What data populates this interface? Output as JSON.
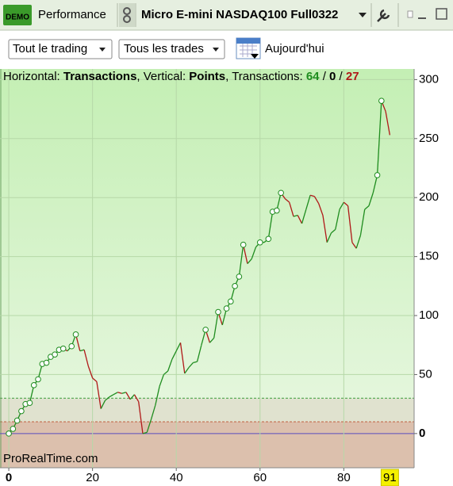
{
  "ui": {
    "demo_badge": "DEMO",
    "tab": "Performance",
    "instrument": "Micro E-mini NASDAQ100 Full0322",
    "filter_trading": "Tout le trading",
    "filter_trades": "Tous les trades",
    "date": "Aujourd'hui"
  },
  "chart_data": {
    "type": "line",
    "header": {
      "h_label": "Horizontal: ",
      "x_label": "Transactions",
      "v_label": ", Vertical: ",
      "y_label": "Points",
      "count_label": ", Transactions: ",
      "wins": 64,
      "sep": " / ",
      "neutral": 0,
      "losses": 27
    },
    "watermark": "ProRealTime.com",
    "x": [
      0,
      1,
      2,
      3,
      4,
      5,
      6,
      7,
      8,
      9,
      10,
      11,
      12,
      13,
      14,
      15,
      16,
      17,
      18,
      19,
      20,
      21,
      22,
      23,
      24,
      25,
      26,
      27,
      28,
      29,
      30,
      31,
      32,
      33,
      34,
      35,
      36,
      37,
      38,
      39,
      40,
      41,
      42,
      43,
      44,
      45,
      46,
      47,
      48,
      49,
      50,
      51,
      52,
      53,
      54,
      55,
      56,
      57,
      58,
      59,
      60,
      61,
      62,
      63,
      64,
      65,
      66,
      67,
      68,
      69,
      70,
      71,
      72,
      73,
      74,
      75,
      76,
      77,
      78,
      79,
      80,
      81,
      82,
      83,
      84,
      85,
      86,
      87,
      88,
      89,
      90,
      91
    ],
    "values": [
      0,
      4,
      11,
      19,
      25,
      26,
      41,
      46,
      59,
      60,
      65,
      67,
      71,
      72,
      70,
      74,
      84,
      70,
      71,
      57,
      47,
      44,
      21,
      28,
      31,
      33,
      35,
      34,
      35,
      29,
      33,
      27,
      0,
      1,
      12,
      24,
      40,
      50,
      53,
      63,
      70,
      77,
      51,
      56,
      60,
      61,
      75,
      88,
      77,
      81,
      103,
      92,
      106,
      112,
      125,
      133,
      160,
      144,
      148,
      158,
      162,
      162,
      165,
      188,
      189,
      204,
      199,
      196,
      184,
      185,
      178,
      190,
      202,
      201,
      195,
      185,
      162,
      170,
      173,
      190,
      196,
      193,
      162,
      157,
      168,
      190,
      193,
      204,
      219,
      282,
      273,
      253
    ],
    "up_color": "#1e8c1e",
    "down_color": "#b01818",
    "xlim": [
      -2.1,
      96.8
    ],
    "ylim": [
      -29,
      309
    ],
    "xticks": [
      0,
      20,
      40,
      60,
      80
    ],
    "yticks": [
      0,
      50,
      100,
      150,
      200,
      250,
      300
    ],
    "upper_threshold": 30,
    "lower_threshold": 10,
    "grid": true
  }
}
